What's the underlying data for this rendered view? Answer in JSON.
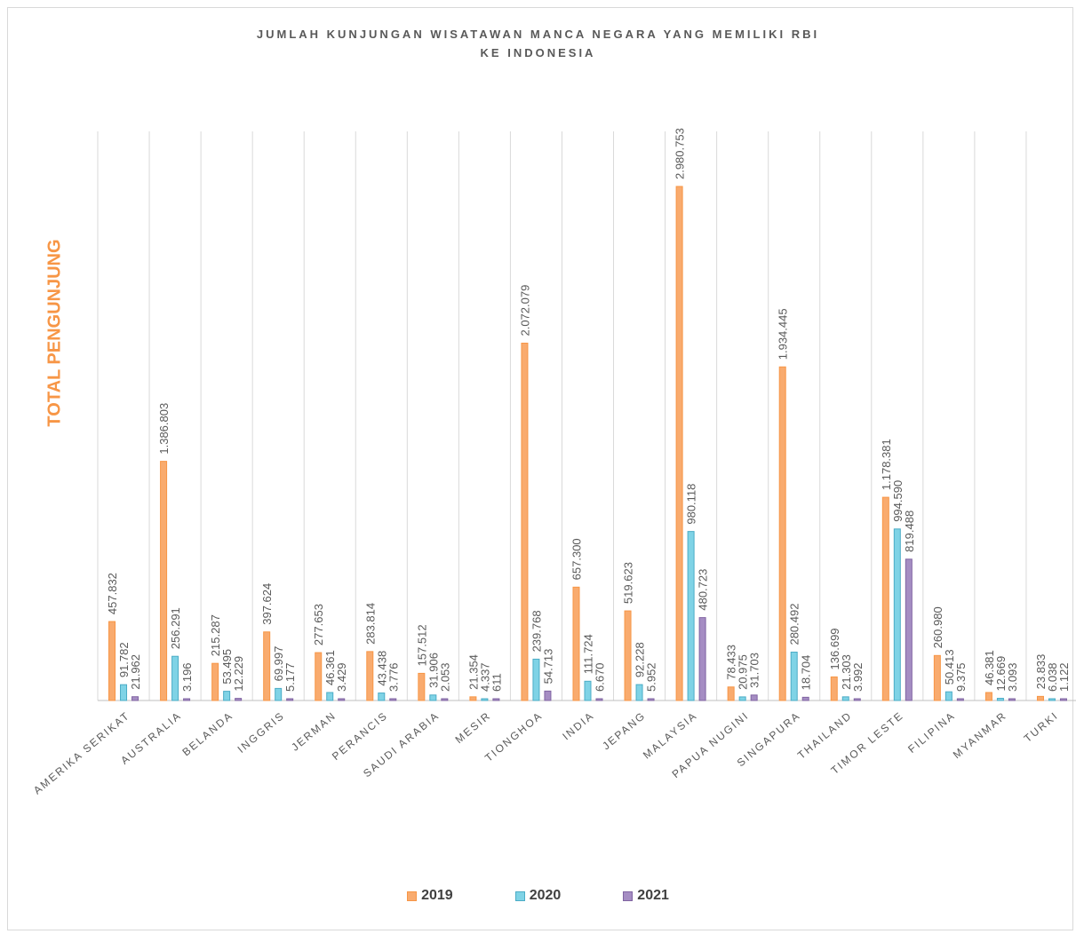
{
  "chart_data": {
    "type": "bar",
    "title": [
      "JUMLAH KUNJUNGAN WISATAWAN MANCA NEGARA YANG MEMILIKI RBI",
      "KE INDONESIA"
    ],
    "ylabel": "TOTAL PENGUNJUNG",
    "xlabel": "",
    "ylim": [
      0,
      3300000
    ],
    "grid": "vertical category separators",
    "legend_position": "bottom",
    "categories": [
      "AMERIKA SERIKAT",
      "AUSTRALIA",
      "BELANDA",
      "INGGRIS",
      "JERMAN",
      "PERANCIS",
      "SAUDI ARABIA",
      "MESIR",
      "TIONGHOA",
      "INDIA",
      "JEPANG",
      "MALAYSIA",
      "PAPUA NUGINI",
      "SINGAPURA",
      "THAILAND",
      "TIMOR LESTE",
      "FILIPINA",
      "MYANMAR",
      "TURKI"
    ],
    "series": [
      {
        "name": "2019",
        "color": "#f79646",
        "values": [
          457832,
          1386803,
          215287,
          397624,
          277653,
          283814,
          157512,
          21354,
          2072079,
          657300,
          519623,
          2980753,
          78433,
          1934445,
          136699,
          1178381,
          260980,
          46381,
          23833
        ],
        "labels": [
          "457.832",
          "1.386.803",
          "215.287",
          "397.624",
          "277.653",
          "283.814",
          "157.512",
          "21.354",
          "2.072.079",
          "657.300",
          "519.623",
          "2.980.753",
          "78.433",
          "1.934.445",
          "136.699",
          "1.178.381",
          "260.980",
          "46.381",
          "23.833"
        ]
      },
      {
        "name": "2020",
        "color": "#4bacc6",
        "values": [
          91782,
          256291,
          53495,
          69997,
          46361,
          43438,
          31906,
          4337,
          239768,
          111724,
          92228,
          980118,
          20975,
          280492,
          21303,
          994590,
          50413,
          12669,
          6038
        ],
        "labels": [
          "91.782",
          "256.291",
          "53.495",
          "69.997",
          "46.361",
          "43.438",
          "31.906",
          "4.337",
          "239.768",
          "111.724",
          "92.228",
          "980.118",
          "20.975",
          "280.492",
          "21.303",
          "994.590",
          "50.413",
          "12.669",
          "6.038"
        ]
      },
      {
        "name": "2021",
        "color": "#8064a2",
        "values": [
          21962,
          3196,
          12229,
          5177,
          3429,
          3776,
          2053,
          611,
          54713,
          6670,
          5952,
          480723,
          31703,
          18704,
          3992,
          819488,
          9375,
          3093,
          1122
        ],
        "labels": [
          "21.962",
          "3.196",
          "12.229",
          "5.177",
          "3.429",
          "3.776",
          "2.053",
          "611",
          "54.713",
          "6.670",
          "5.952",
          "480.723",
          "31.703",
          "18.704",
          "3.992",
          "819.488",
          "9.375",
          "3.093",
          "1.122"
        ]
      }
    ]
  }
}
